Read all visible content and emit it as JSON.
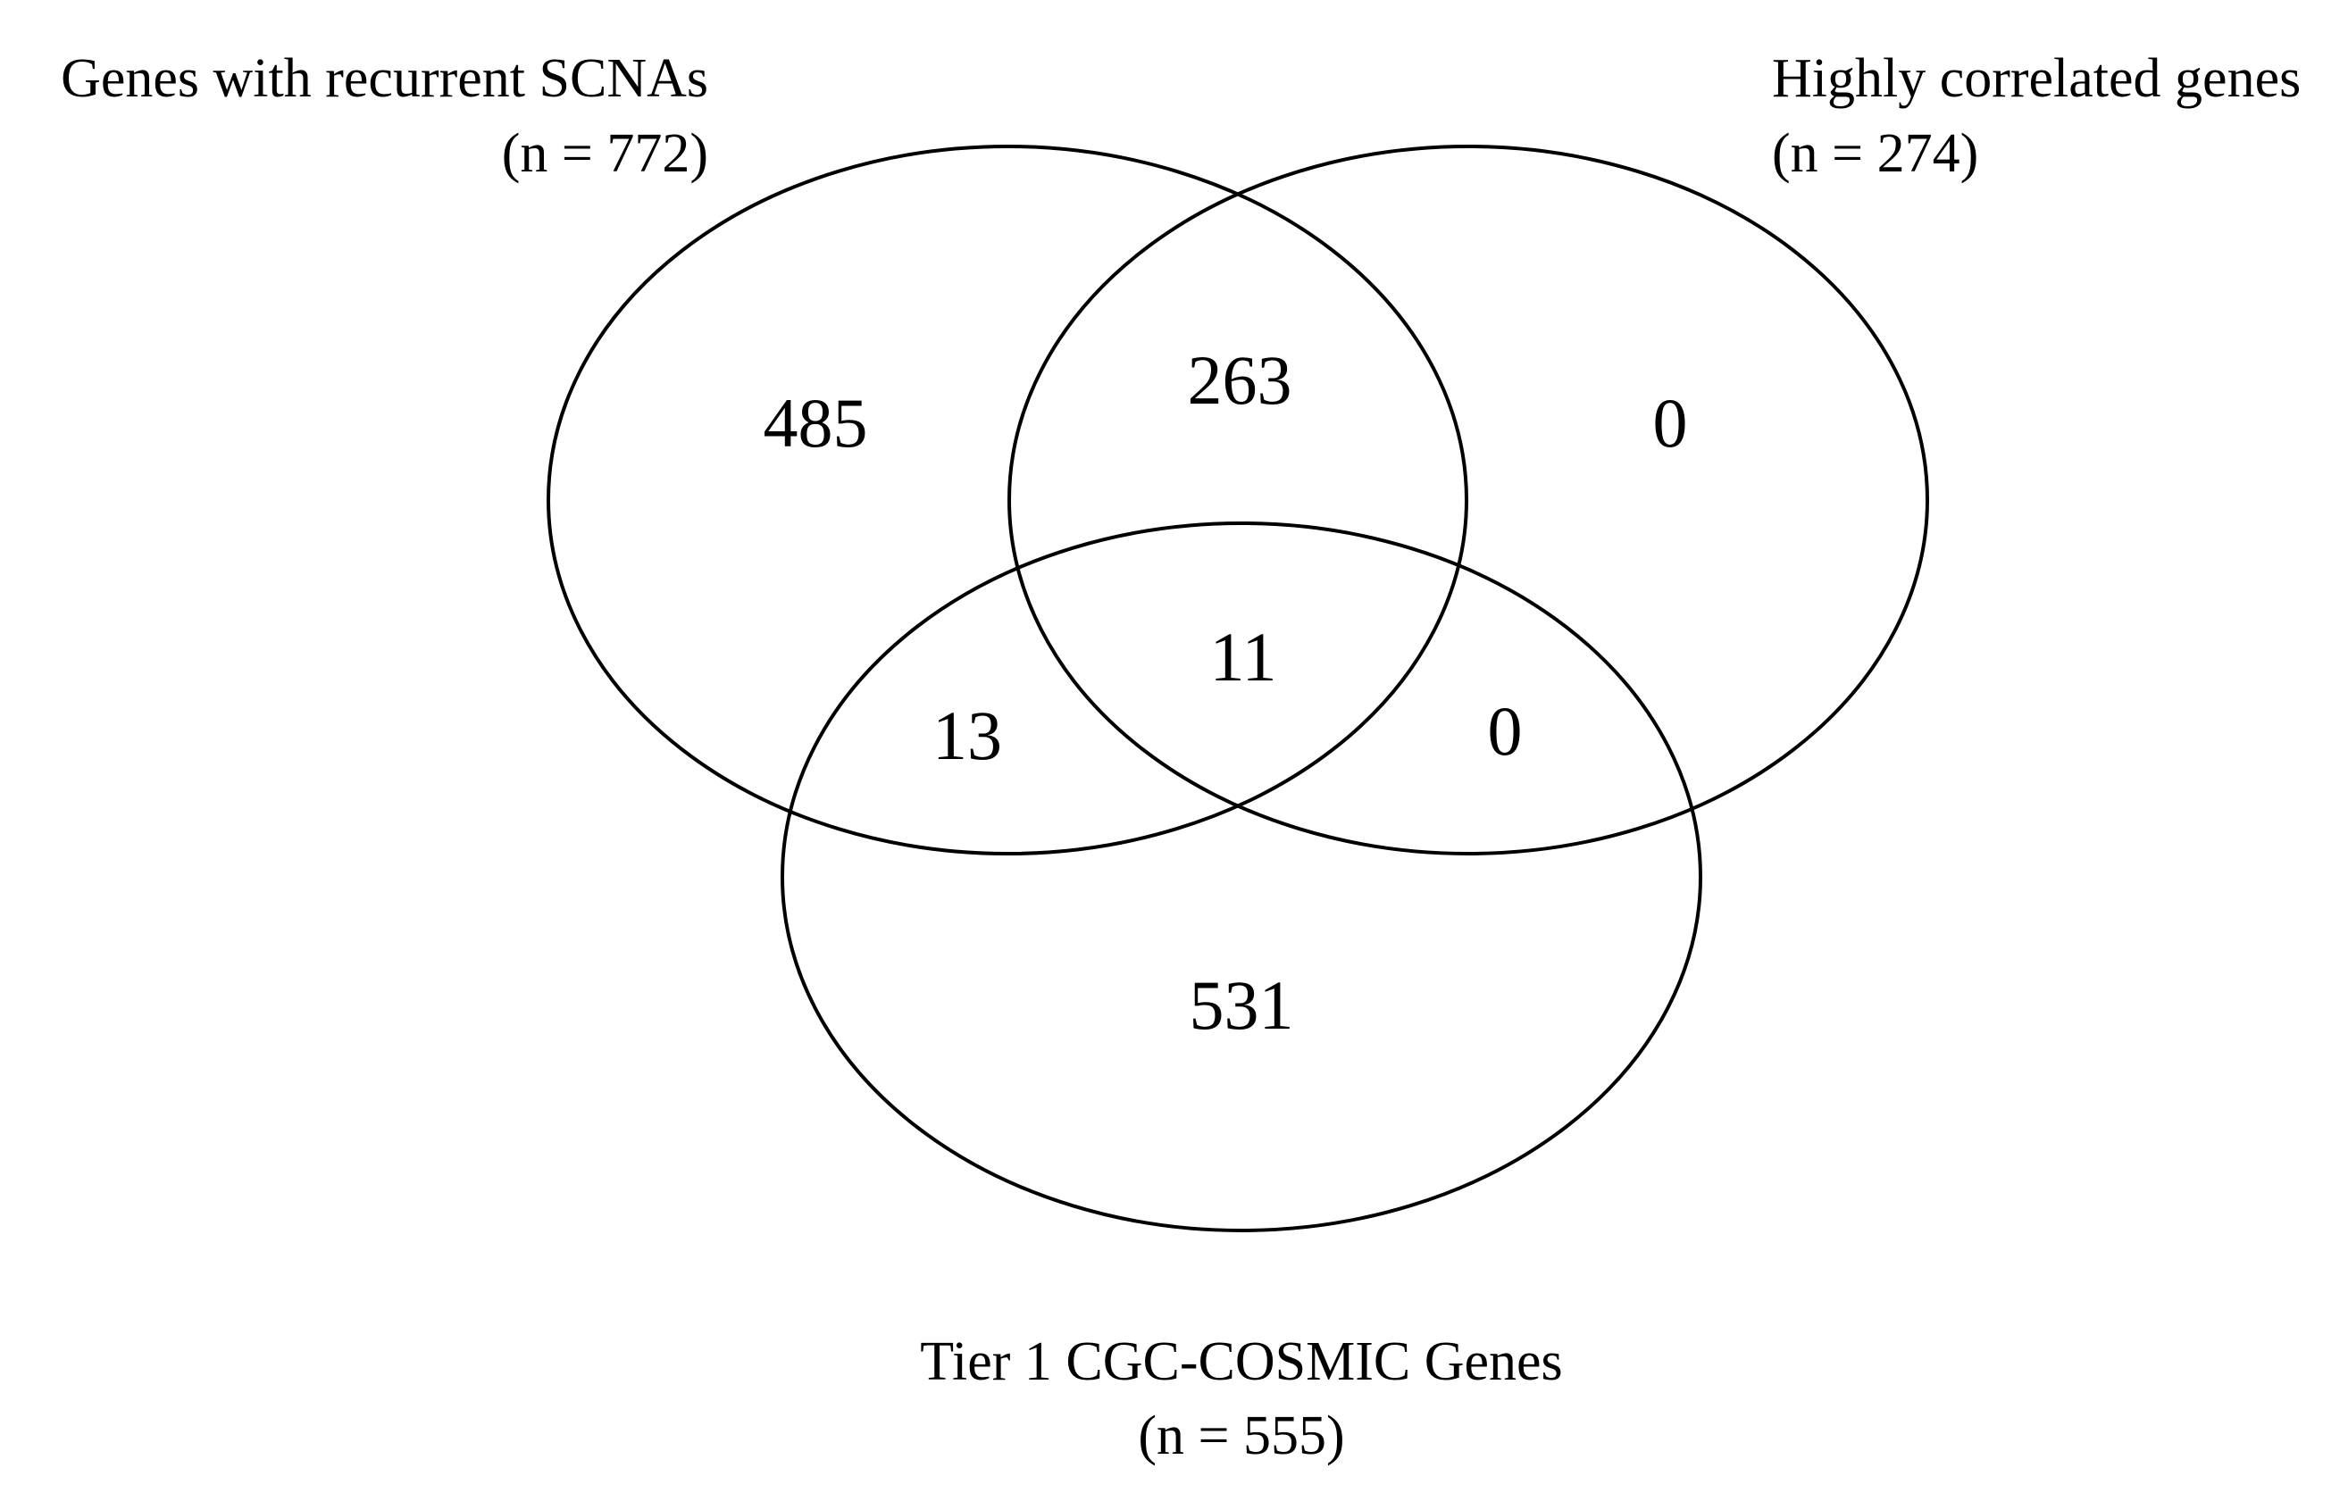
{
  "sets": {
    "scna": {
      "name": "Genes with recurrent SCNAs",
      "n": "(n = 772)"
    },
    "correlated": {
      "name": "Highly correlated genes",
      "n": "(n = 274)"
    },
    "cosmic": {
      "name": "Tier 1 CGC-COSMIC Genes",
      "n": "(n = 555)"
    }
  },
  "regions": {
    "scna_only": "485",
    "scna_correlated": "263",
    "correlated_only": "0",
    "all_three": "11",
    "scna_cosmic": "13",
    "correlated_cosmic": "0",
    "cosmic_only": "531"
  }
}
